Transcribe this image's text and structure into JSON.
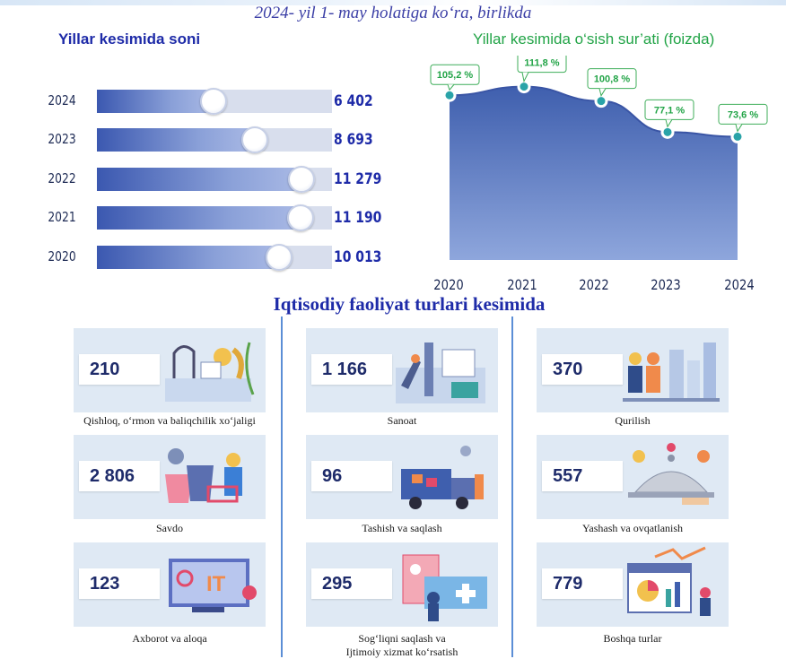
{
  "subtitle": "2024- yil 1- may holatiga ko‘ra, birlikda",
  "chart_data": [
    {
      "type": "bar",
      "title": "Yillar kesimida soni",
      "categories": [
        "2024",
        "2023",
        "2022",
        "2021",
        "2020"
      ],
      "values": [
        6402,
        8693,
        11279,
        11190,
        10013
      ],
      "value_labels": [
        "6 402",
        "8 693",
        "11 279",
        "11 190",
        "10 013"
      ],
      "xlim": [
        0,
        13000
      ]
    },
    {
      "type": "area",
      "title": "Yillar kesimida o‘sish sur’ati (foizda)",
      "x": [
        "2020",
        "2021",
        "2022",
        "2023",
        "2024"
      ],
      "values": [
        105.2,
        111.8,
        100.8,
        77.1,
        73.6
      ],
      "value_labels": [
        "105,2 %",
        "111,8 %",
        "100,8 %",
        "77,1 %",
        "73,6 %"
      ],
      "ylim": [
        0,
        130
      ],
      "colors": {
        "fill": "#4e6fb5",
        "marker": "#2aa3a8",
        "label": "#22a447"
      }
    },
    {
      "type": "table",
      "title": "Iqtisodiy faoliyat turlari kesimida",
      "rows": [
        {
          "label": "Qishloq, o‘rmon va baliqchilik xo‘jaligi",
          "value": "210",
          "icon": "farm-illustration"
        },
        {
          "label": "Sanoat",
          "value": "1 166",
          "icon": "factory-illustration"
        },
        {
          "label": "Qurilish",
          "value": "370",
          "icon": "construction-illustration"
        },
        {
          "label": "Savdo",
          "value": "2 806",
          "icon": "shopping-illustration"
        },
        {
          "label": "Tashish va saqlash",
          "value": "96",
          "icon": "truck-illustration"
        },
        {
          "label": "Yashash va ovqatlanish",
          "value": "557",
          "icon": "cloche-illustration"
        },
        {
          "label": "Axborot va aloqa",
          "value": "123",
          "icon": "it-illustration"
        },
        {
          "label": "Sog‘liqni saqlash va Ijtimoiy xizmat ko‘rsatish",
          "label_lines": [
            "Sog‘liqni saqlash va",
            "Ijtimoiy xizmat ko‘rsatish"
          ],
          "value": "295",
          "icon": "medical-illustration"
        },
        {
          "label": "Boshqa turlar",
          "value": "779",
          "icon": "analytics-illustration"
        }
      ]
    }
  ]
}
